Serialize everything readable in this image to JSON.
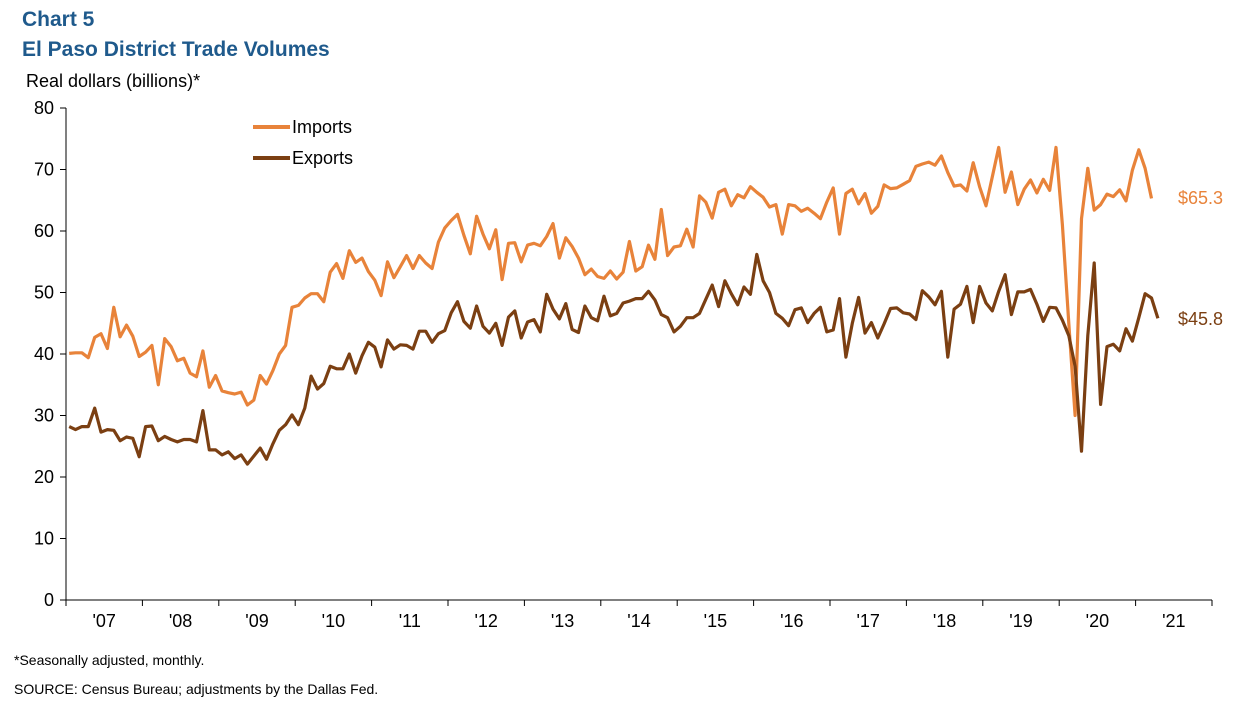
{
  "header": {
    "chart_label": "Chart 5",
    "title": "El Paso District Trade Volumes",
    "y_unit": "Real dollars (billions)*"
  },
  "footer": {
    "footnote": "*Seasonally adjusted, monthly.",
    "source": "SOURCE:  Census Bureau; adjustments  by the Dallas Fed."
  },
  "colors": {
    "imports": "#e8833a",
    "exports": "#7b3f12",
    "axis": "#000000"
  },
  "chart_data": {
    "type": "line",
    "title": "El Paso District Trade Volumes",
    "ylabel": "Real dollars (billions)*",
    "xlabel": "",
    "ylim": [
      0,
      80
    ],
    "yticks": [
      0,
      10,
      20,
      30,
      40,
      50,
      60,
      70,
      80
    ],
    "x_tick_labels": [
      "'07",
      "'08",
      "'09",
      "'10",
      "'11",
      "'12",
      "'13",
      "'14",
      "'15",
      "'16",
      "'17",
      "'18",
      "'19",
      "'20",
      "'21"
    ],
    "x_start": "2007-01",
    "x_end": "2021-04",
    "legend_position": "top-left",
    "grid": false,
    "series": [
      {
        "name": "Imports",
        "end_label": "$65.3",
        "values": [
          40.1,
          40.2,
          40.2,
          39.4,
          42.7,
          43.3,
          40.9,
          47.6,
          42.8,
          44.7,
          42.9,
          39.6,
          40.3,
          41.4,
          35.0,
          42.5,
          41.2,
          38.9,
          39.3,
          36.9,
          36.3,
          40.5,
          34.6,
          36.5,
          34.0,
          33.7,
          33.5,
          33.8,
          31.7,
          32.5,
          36.5,
          35.1,
          37.3,
          40.0,
          41.4,
          47.6,
          47.9,
          49.1,
          49.8,
          49.8,
          48.5,
          53.3,
          54.7,
          52.3,
          56.8,
          54.9,
          55.6,
          53.4,
          52.0,
          49.5,
          55.0,
          52.4,
          54.2,
          56.0,
          53.9,
          56.0,
          54.8,
          53.9,
          58.2,
          60.5,
          61.7,
          62.7,
          59.3,
          56.3,
          62.4,
          59.5,
          57.1,
          60.2,
          52.1,
          58.0,
          58.1,
          55.0,
          57.7,
          58.0,
          57.6,
          59.1,
          61.2,
          55.6,
          58.9,
          57.5,
          55.6,
          52.9,
          53.8,
          52.6,
          52.3,
          53.5,
          52.2,
          53.3,
          58.3,
          53.5,
          54.2,
          57.7,
          55.4,
          63.5,
          56.0,
          57.4,
          57.6,
          60.3,
          57.4,
          65.7,
          64.7,
          62.1,
          66.3,
          66.8,
          64.1,
          65.9,
          65.4,
          67.2,
          66.3,
          65.5,
          63.9,
          64.3,
          59.5,
          64.3,
          64.1,
          63.2,
          63.7,
          62.9,
          62.0,
          64.7,
          67.0,
          59.5,
          66.1,
          66.8,
          64.4,
          66.1,
          62.9,
          64.0,
          67.5,
          66.9,
          67.0,
          67.6,
          68.2,
          70.5,
          70.9,
          71.2,
          70.7,
          72.2,
          69.5,
          67.3,
          67.5,
          66.5,
          71.1,
          67.2,
          64.1,
          68.8,
          73.6,
          66.3,
          69.6,
          64.3,
          66.8,
          68.3,
          66.2,
          68.4,
          66.6,
          73.6,
          61.0,
          45.0,
          30.0,
          62.0,
          70.2,
          63.4,
          64.3,
          66.0,
          65.6,
          66.7,
          64.9,
          69.9,
          73.2,
          70.2,
          65.3
        ]
      },
      {
        "name": "Exports",
        "end_label": "$45.8",
        "values": [
          28.2,
          27.7,
          28.2,
          28.2,
          31.2,
          27.3,
          27.7,
          27.6,
          25.9,
          26.5,
          26.3,
          23.3,
          28.2,
          28.3,
          25.9,
          26.6,
          26.1,
          25.7,
          26.1,
          26.1,
          25.7,
          30.8,
          24.4,
          24.4,
          23.6,
          24.1,
          23.0,
          23.6,
          22.1,
          23.4,
          24.7,
          22.9,
          25.4,
          27.6,
          28.5,
          30.1,
          28.5,
          31.2,
          36.4,
          34.3,
          35.2,
          38.0,
          37.6,
          37.6,
          40.0,
          36.9,
          39.7,
          41.9,
          41.1,
          37.9,
          42.3,
          40.8,
          41.5,
          41.4,
          40.8,
          43.7,
          43.7,
          41.9,
          43.3,
          43.8,
          46.7,
          48.5,
          45.3,
          44.2,
          47.8,
          44.5,
          43.4,
          45.0,
          41.4,
          46.0,
          47.0,
          42.6,
          45.2,
          45.6,
          43.6,
          49.7,
          47.3,
          45.7,
          48.2,
          44.0,
          43.5,
          47.8,
          45.9,
          45.4,
          49.4,
          46.2,
          46.6,
          48.3,
          48.6,
          49.0,
          49.0,
          50.2,
          48.8,
          46.4,
          45.9,
          43.6,
          44.5,
          45.9,
          45.9,
          46.6,
          48.9,
          51.2,
          47.7,
          51.9,
          49.8,
          48.0,
          50.9,
          49.7,
          56.2,
          51.9,
          50.0,
          46.6,
          45.8,
          44.6,
          47.2,
          47.5,
          45.1,
          46.6,
          47.6,
          43.6,
          43.9,
          49.0,
          39.5,
          45.0,
          49.2,
          43.4,
          45.1,
          42.6,
          44.9,
          47.4,
          47.5,
          46.7,
          46.5,
          45.6,
          50.3,
          49.3,
          48.0,
          50.2,
          39.5,
          47.3,
          48.1,
          51.0,
          45.1,
          51.0,
          48.3,
          47.0,
          50.2,
          52.9,
          46.4,
          50.1,
          50.1,
          50.5,
          48.1,
          45.3,
          47.6,
          47.5,
          45.5,
          43.0,
          38.0,
          24.2,
          43.0,
          54.8,
          31.8,
          41.2,
          41.6,
          40.5,
          44.1,
          42.1,
          45.9,
          49.8,
          49.1,
          45.8
        ]
      }
    ]
  }
}
